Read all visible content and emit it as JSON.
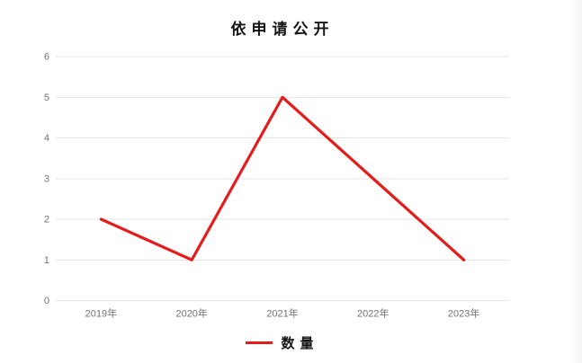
{
  "chart": {
    "title": "依申请公开",
    "legend_label": "数量"
  },
  "chart_data": {
    "type": "line",
    "title": "依申请公开",
    "categories": [
      "2019年",
      "2020年",
      "2021年",
      "2022年",
      "2023年"
    ],
    "series": [
      {
        "name": "数量",
        "values": [
          2,
          1,
          5,
          3,
          1
        ],
        "color": "#e51c1c"
      }
    ],
    "xlabel": "",
    "ylabel": "",
    "ylim": [
      0,
      6
    ],
    "yticks": [
      0,
      1,
      2,
      3,
      4,
      5,
      6
    ],
    "grid": true,
    "gridline_color": "#e4e4e4",
    "tick_label_color": "#737373",
    "legend_position": "bottom"
  }
}
